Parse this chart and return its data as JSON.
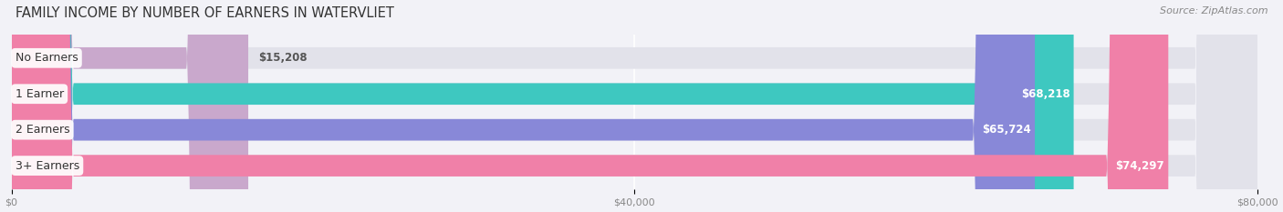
{
  "title": "FAMILY INCOME BY NUMBER OF EARNERS IN WATERVLIET",
  "source": "Source: ZipAtlas.com",
  "categories": [
    "No Earners",
    "1 Earner",
    "2 Earners",
    "3+ Earners"
  ],
  "values": [
    15208,
    68218,
    65724,
    74297
  ],
  "value_labels": [
    "$15,208",
    "$68,218",
    "$65,724",
    "$74,297"
  ],
  "bar_colors": [
    "#c9a8cc",
    "#3ec8c0",
    "#8888d8",
    "#f080a8"
  ],
  "label_colors": [
    "#555555",
    "#ffffff",
    "#ffffff",
    "#ffffff"
  ],
  "xlim": [
    0,
    80000
  ],
  "xticks": [
    0,
    40000,
    80000
  ],
  "xticklabels": [
    "$0",
    "$40,000",
    "$80,000"
  ],
  "background_color": "#f2f2f7",
  "bar_background": "#e2e2ea",
  "title_fontsize": 10.5,
  "source_fontsize": 8,
  "label_fontsize": 9,
  "value_fontsize": 8.5,
  "bar_height": 0.6
}
